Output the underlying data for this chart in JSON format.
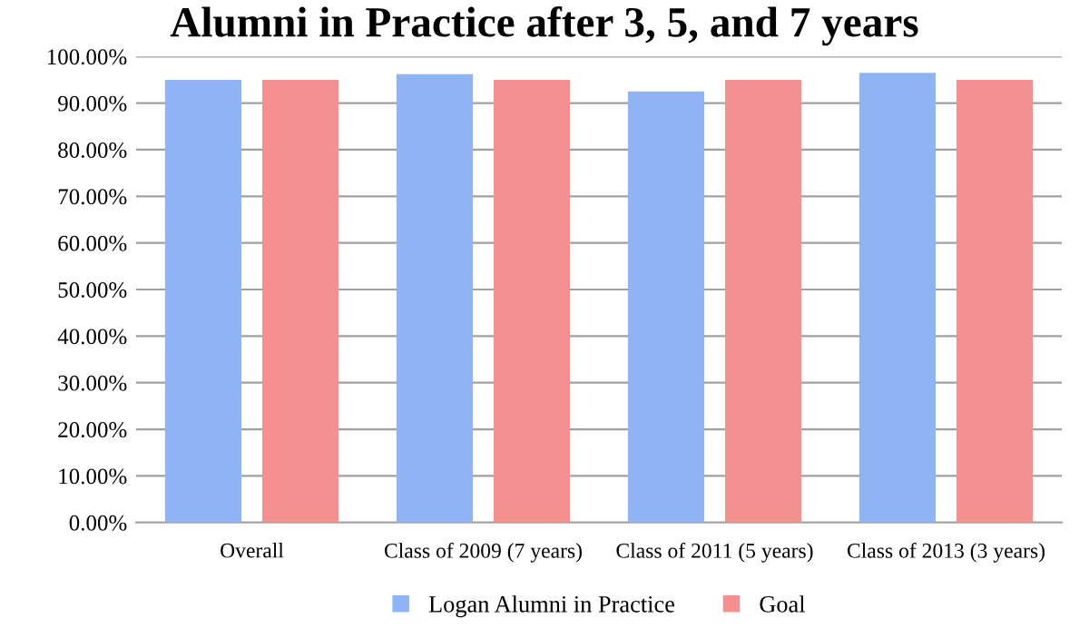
{
  "chart_data": {
    "type": "bar",
    "title": "Alumni in Practice after 3, 5, and 7 years",
    "categories": [
      "Overall",
      "Class of 2009 (7 years)",
      "Class of 2011 (5 years)",
      "Class of 2013 (3 years)"
    ],
    "series": [
      {
        "name": "Logan Alumni in Practice",
        "color": "#8fb4f5",
        "values": [
          95,
          96.2,
          92.5,
          96.5
        ]
      },
      {
        "name": "Goal",
        "color": "#f59090",
        "values": [
          95,
          95,
          95,
          95
        ]
      }
    ],
    "ylim": [
      0,
      100
    ],
    "yticks": [
      {
        "value": 0,
        "label": "0.00%"
      },
      {
        "value": 10,
        "label": "10.00%"
      },
      {
        "value": 20,
        "label": "20.00%"
      },
      {
        "value": 30,
        "label": "30.00%"
      },
      {
        "value": 40,
        "label": "40.00%"
      },
      {
        "value": 50,
        "label": "50.00%"
      },
      {
        "value": 60,
        "label": "60.00%"
      },
      {
        "value": 70,
        "label": "70.00%"
      },
      {
        "value": 80,
        "label": "80.00%"
      },
      {
        "value": 90,
        "label": "90.00%"
      },
      {
        "value": 100,
        "label": "100.00%"
      }
    ],
    "grid": "y",
    "legend": "bottom"
  }
}
